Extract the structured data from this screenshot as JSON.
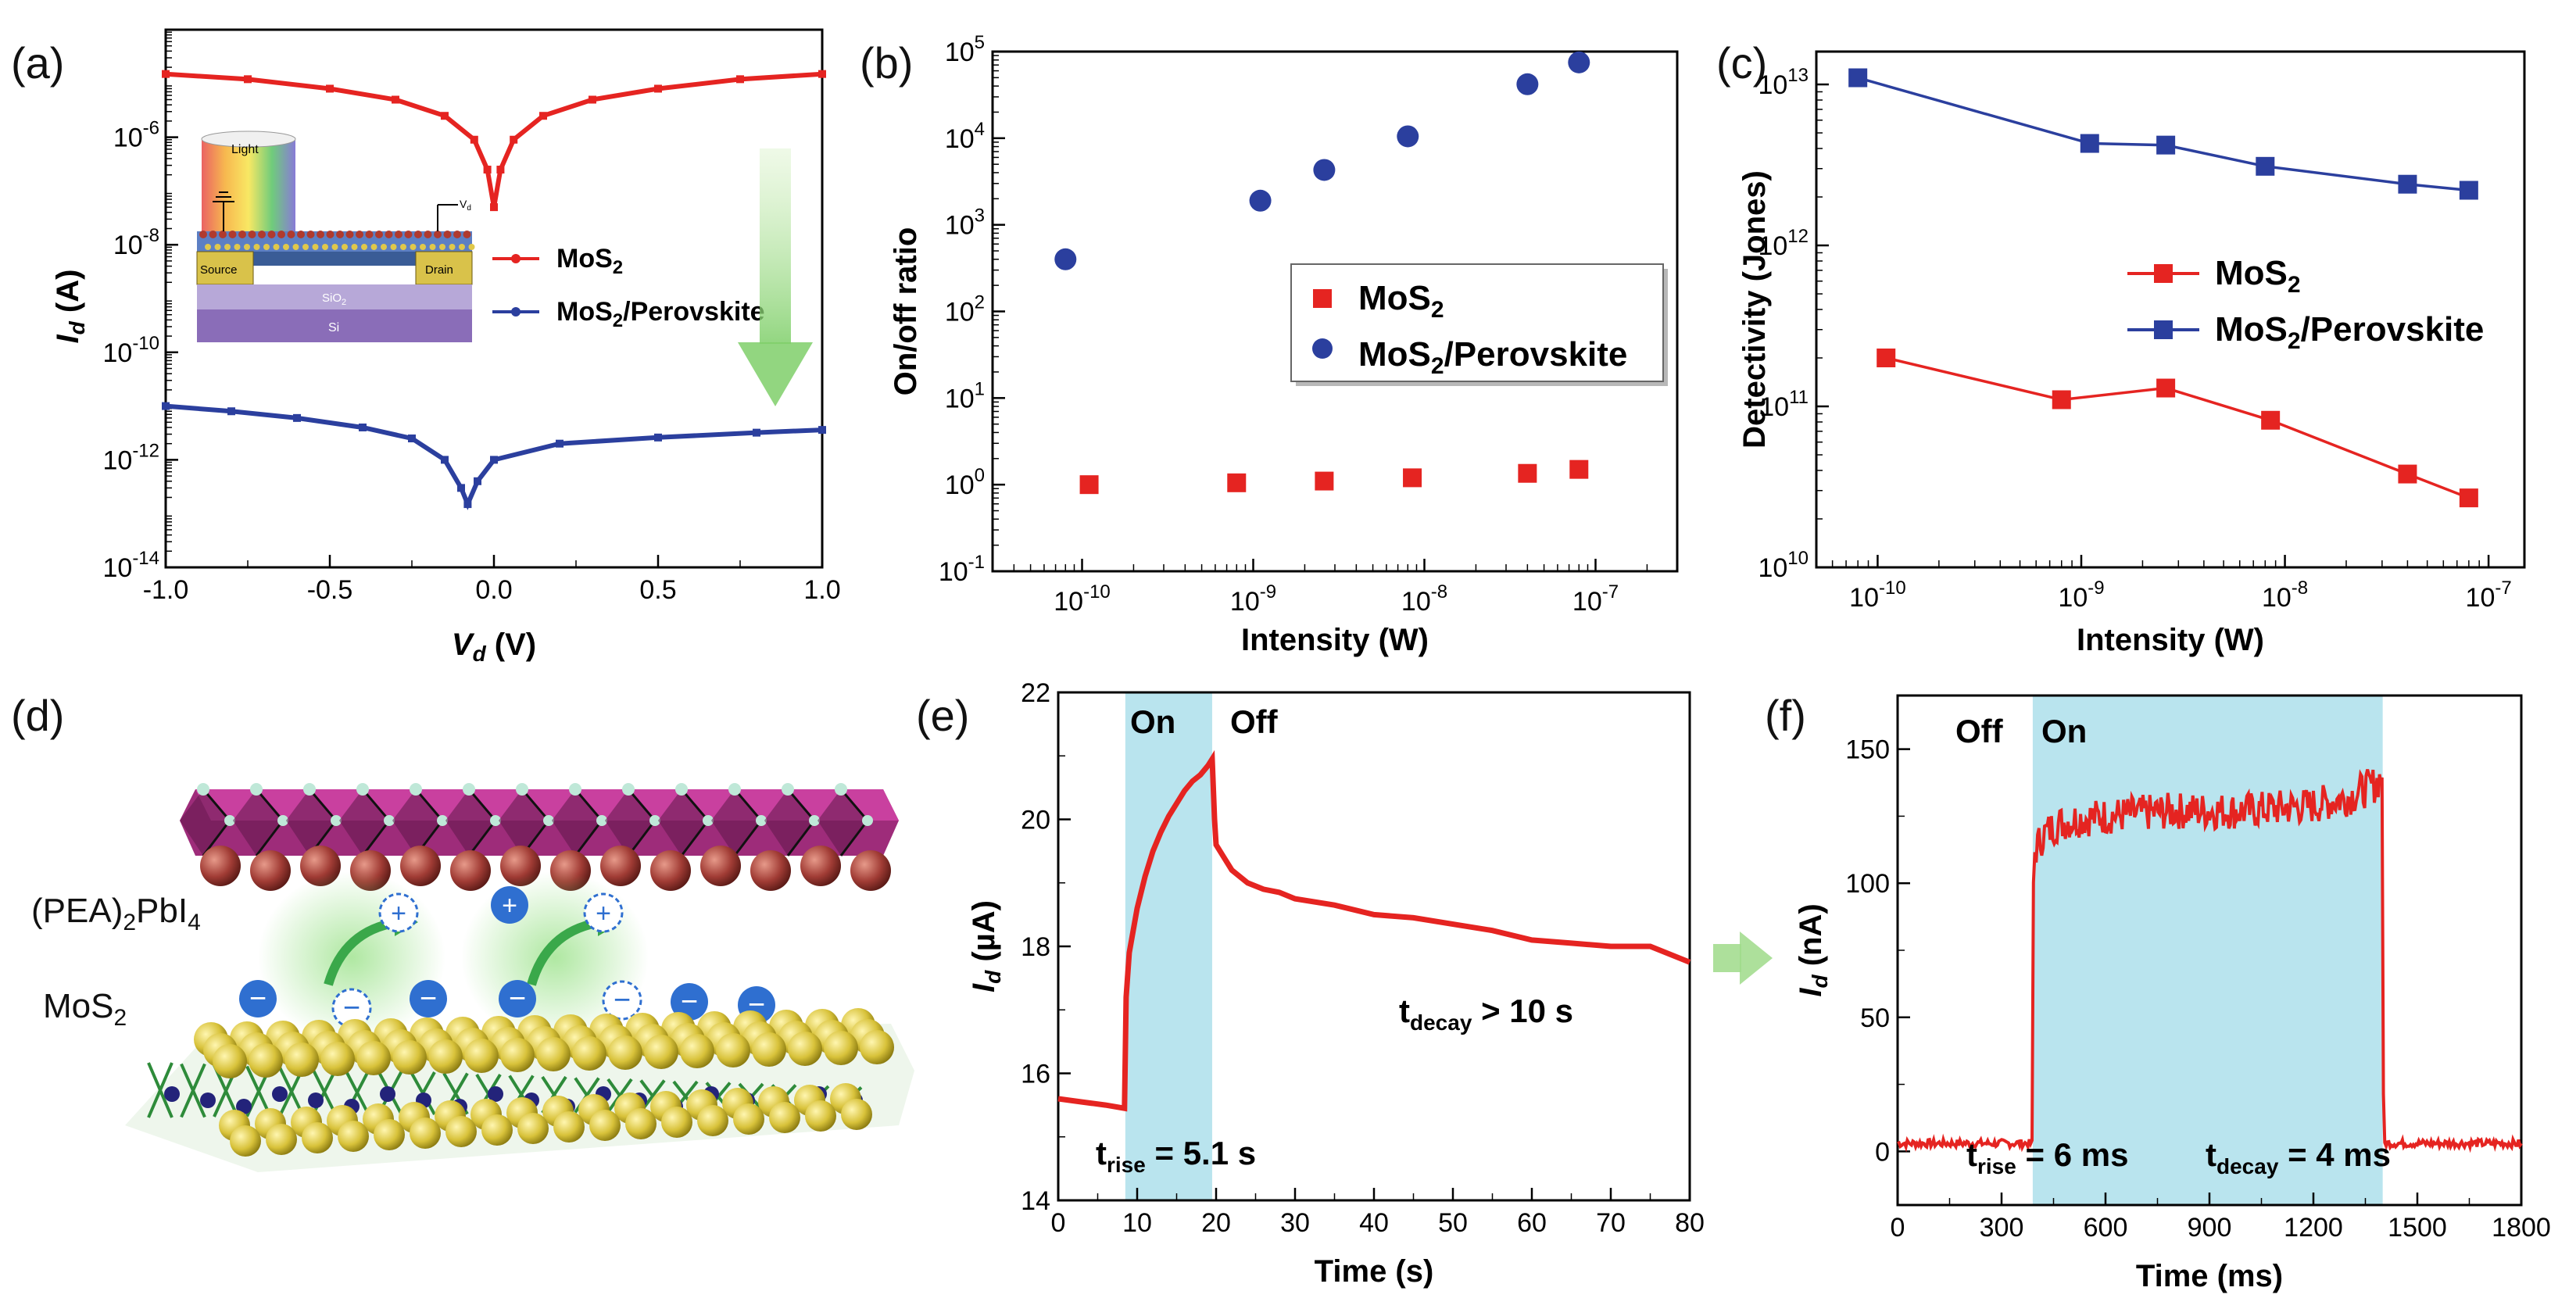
{
  "panel_labels": {
    "a": "(a)",
    "b": "(b)",
    "c": "(c)",
    "d": "(d)",
    "e": "(e)",
    "f": "(f)"
  },
  "colors": {
    "mos2": "#e52421",
    "perovskite": "#2b3f9e",
    "highlight": "#b9e4ee",
    "arrow": "#8ed07a"
  },
  "schematic_d": {
    "label_pea": "(PEA)",
    "label_pea_sub": "2",
    "label_pea_rest": "PbI",
    "label_pea_sub2": "4",
    "label_mos2": "MoS",
    "label_mos2_sub": "2",
    "plus": "+",
    "minus": "−"
  },
  "inset_a": {
    "light": "Light",
    "source": "Source",
    "drain": "Drain",
    "sio2": "SiO",
    "sio2_sub": "2",
    "si": "Si",
    "vd": "V",
    "vd_sub": "d"
  },
  "chart_data": [
    {
      "id": "a",
      "type": "line",
      "xlabel": "V",
      "xlabel_sub": "d",
      "xlabel_unit": " (V)",
      "ylabel": "I",
      "ylabel_sub": "d",
      "ylabel_unit": " (A)",
      "xlim": [
        -1.0,
        1.0
      ],
      "ylim_log": [
        1e-14,
        0.0001
      ],
      "xticks": [
        "-1.0",
        "-0.5",
        "0.0",
        "0.5",
        "1.0"
      ],
      "yticks": [
        {
          "b": "10",
          "e": "-14"
        },
        {
          "b": "10",
          "e": "-12"
        },
        {
          "b": "10",
          "e": "-10"
        },
        {
          "b": "10",
          "e": "-8"
        },
        {
          "b": "10",
          "e": "-6"
        }
      ],
      "legend": [
        {
          "name": "MoS",
          "sub": "2"
        },
        {
          "name": "MoS",
          "sub": "2",
          "rest": "/Perovskite"
        }
      ],
      "series": [
        {
          "name": "MoS2",
          "x": [
            -1.0,
            -0.75,
            -0.5,
            -0.3,
            -0.15,
            -0.06,
            -0.02,
            0.0,
            0.02,
            0.06,
            0.15,
            0.3,
            0.5,
            0.75,
            1.0
          ],
          "y": [
            1.5e-05,
            1.2e-05,
            8e-06,
            5e-06,
            2.5e-06,
            9e-07,
            2.5e-07,
            5e-08,
            2.5e-07,
            9e-07,
            2.5e-06,
            5e-06,
            8e-06,
            1.2e-05,
            1.5e-05
          ]
        },
        {
          "name": "MoS2/Perovskite",
          "x": [
            -1.0,
            -0.8,
            -0.6,
            -0.4,
            -0.25,
            -0.15,
            -0.1,
            -0.08,
            -0.05,
            0.0,
            0.2,
            0.5,
            0.8,
            1.0
          ],
          "y": [
            1e-11,
            8e-12,
            6e-12,
            4e-12,
            2.5e-12,
            1e-12,
            3e-13,
            1.5e-13,
            4e-13,
            1e-12,
            2e-12,
            2.6e-12,
            3.2e-12,
            3.6e-12
          ]
        }
      ]
    },
    {
      "id": "b",
      "type": "scatter",
      "xlabel": "Intensity (W)",
      "ylabel": "On/off ratio",
      "xlim_log": [
        3e-11,
        3e-07
      ],
      "ylim_log": [
        0.1,
        100000.0
      ],
      "xticks": [
        {
          "b": "10",
          "e": "-10"
        },
        {
          "b": "10",
          "e": "-9"
        },
        {
          "b": "10",
          "e": "-8"
        },
        {
          "b": "10",
          "e": "-7"
        }
      ],
      "yticks": [
        {
          "b": "10",
          "e": "-1"
        },
        {
          "b": "10",
          "e": "0"
        },
        {
          "b": "10",
          "e": "1"
        },
        {
          "b": "10",
          "e": "2"
        },
        {
          "b": "10",
          "e": "3"
        },
        {
          "b": "10",
          "e": "4"
        },
        {
          "b": "10",
          "e": "5"
        }
      ],
      "legend": [
        {
          "name": "MoS",
          "sub": "2"
        },
        {
          "name": "MoS",
          "sub": "2",
          "rest": "/Perovskite"
        }
      ],
      "series": [
        {
          "name": "MoS2",
          "x": [
            1.1e-10,
            8e-10,
            2.6e-09,
            8.5e-09,
            4e-08,
            8e-08
          ],
          "y": [
            1.0,
            1.05,
            1.1,
            1.2,
            1.35,
            1.5
          ]
        },
        {
          "name": "MoS2/Perovskite",
          "x": [
            8e-11,
            1.1e-09,
            2.6e-09,
            8e-09,
            4e-08,
            8e-08
          ],
          "y": [
            400,
            1900,
            4300,
            10500,
            42000,
            75000
          ]
        }
      ]
    },
    {
      "id": "c",
      "type": "line",
      "xlabel": "Intensity (W)",
      "ylabel": "Detectivity (Jones)",
      "xlim_log": [
        5e-11,
        1.5e-07
      ],
      "ylim_log": [
        10000000000.0,
        16000000000000.0
      ],
      "xticks": [
        {
          "b": "10",
          "e": "-10"
        },
        {
          "b": "10",
          "e": "-9"
        },
        {
          "b": "10",
          "e": "-8"
        },
        {
          "b": "10",
          "e": "-7"
        }
      ],
      "yticks": [
        {
          "b": "10",
          "e": "10"
        },
        {
          "b": "10",
          "e": "11"
        },
        {
          "b": "10",
          "e": "12"
        },
        {
          "b": "10",
          "e": "13"
        }
      ],
      "legend": [
        {
          "name": "MoS",
          "sub": "2"
        },
        {
          "name": "MoS",
          "sub": "2",
          "rest": "/Perovskite"
        }
      ],
      "series": [
        {
          "name": "MoS2",
          "x": [
            1.1e-10,
            8e-10,
            2.6e-09,
            8.5e-09,
            4e-08,
            8e-08
          ],
          "y": [
            200000000000.0,
            110000000000.0,
            130000000000.0,
            82000000000.0,
            38000000000.0,
            27000000000.0
          ]
        },
        {
          "name": "MoS2/Perovskite",
          "x": [
            8e-11,
            1.1e-09,
            2.6e-09,
            8e-09,
            4e-08,
            8e-08
          ],
          "y": [
            11000000000000.0,
            4300000000000.0,
            4200000000000.0,
            3100000000000.0,
            2400000000000.0,
            2200000000000.0
          ]
        }
      ]
    },
    {
      "id": "e",
      "type": "line",
      "xlabel": "Time (s)",
      "ylabel": "I",
      "ylabel_sub": "d",
      "ylabel_unit": " (µA)",
      "xlim": [
        0,
        80
      ],
      "ylim": [
        14,
        22
      ],
      "xticks": [
        "0",
        "10",
        "20",
        "30",
        "40",
        "50",
        "60",
        "70",
        "80"
      ],
      "yticks": [
        "14",
        "16",
        "18",
        "20",
        "22"
      ],
      "on_region": [
        8.5,
        19.5
      ],
      "annotations": {
        "on": "On",
        "off": "Off",
        "rise": "t",
        "rise_sub": "rise",
        "rise_val": " = 5.1 s",
        "decay": "t",
        "decay_sub": "decay",
        "decay_val": " > 10 s"
      },
      "series": [
        {
          "name": "MoS2",
          "x": [
            0,
            3,
            6,
            8.4,
            8.6,
            9,
            10,
            11,
            12,
            13,
            14,
            15,
            16,
            17,
            18,
            19,
            19.5,
            19.8,
            20,
            21,
            22,
            24,
            26,
            28,
            30,
            35,
            40,
            45,
            50,
            55,
            60,
            65,
            70,
            75,
            80
          ],
          "y": [
            15.6,
            15.55,
            15.5,
            15.45,
            17.2,
            17.9,
            18.6,
            19.1,
            19.5,
            19.8,
            20.05,
            20.25,
            20.45,
            20.6,
            20.7,
            20.85,
            20.95,
            20.0,
            19.6,
            19.4,
            19.2,
            19.0,
            18.9,
            18.85,
            18.75,
            18.65,
            18.5,
            18.45,
            18.35,
            18.25,
            18.1,
            18.05,
            18.0,
            18.0,
            17.75
          ]
        }
      ]
    },
    {
      "id": "f",
      "type": "line",
      "xlabel": "Time (ms)",
      "ylabel": "I",
      "ylabel_sub": "d",
      "ylabel_unit": " (nA)",
      "xlim": [
        0,
        1800
      ],
      "ylim": [
        -20,
        170
      ],
      "xticks": [
        "0",
        "300",
        "600",
        "900",
        "1200",
        "1500",
        "1800"
      ],
      "yticks": [
        "0",
        "50",
        "100",
        "150"
      ],
      "on_region": [
        390,
        1400
      ],
      "annotations": {
        "on": "On",
        "off": "Off",
        "rise": "t",
        "rise_sub": "rise",
        "rise_val": " = 6 ms",
        "decay": "t",
        "decay_sub": "decay",
        "decay_val": " = 4 ms"
      },
      "series": [
        {
          "name": "MoS2",
          "x": [
            0,
            100,
            200,
            300,
            388,
            392,
            396,
            420,
            460,
            520,
            600,
            700,
            800,
            900,
            1000,
            1100,
            1200,
            1300,
            1380,
            1398,
            1402,
            1406,
            1500,
            1600,
            1700,
            1800
          ],
          "y": [
            3,
            3,
            3,
            3,
            3,
            100,
            112,
            118,
            122,
            124,
            125,
            126,
            127,
            127,
            127,
            128,
            129,
            132,
            137,
            140,
            20,
            3,
            3,
            3,
            3,
            3
          ]
        }
      ]
    }
  ]
}
